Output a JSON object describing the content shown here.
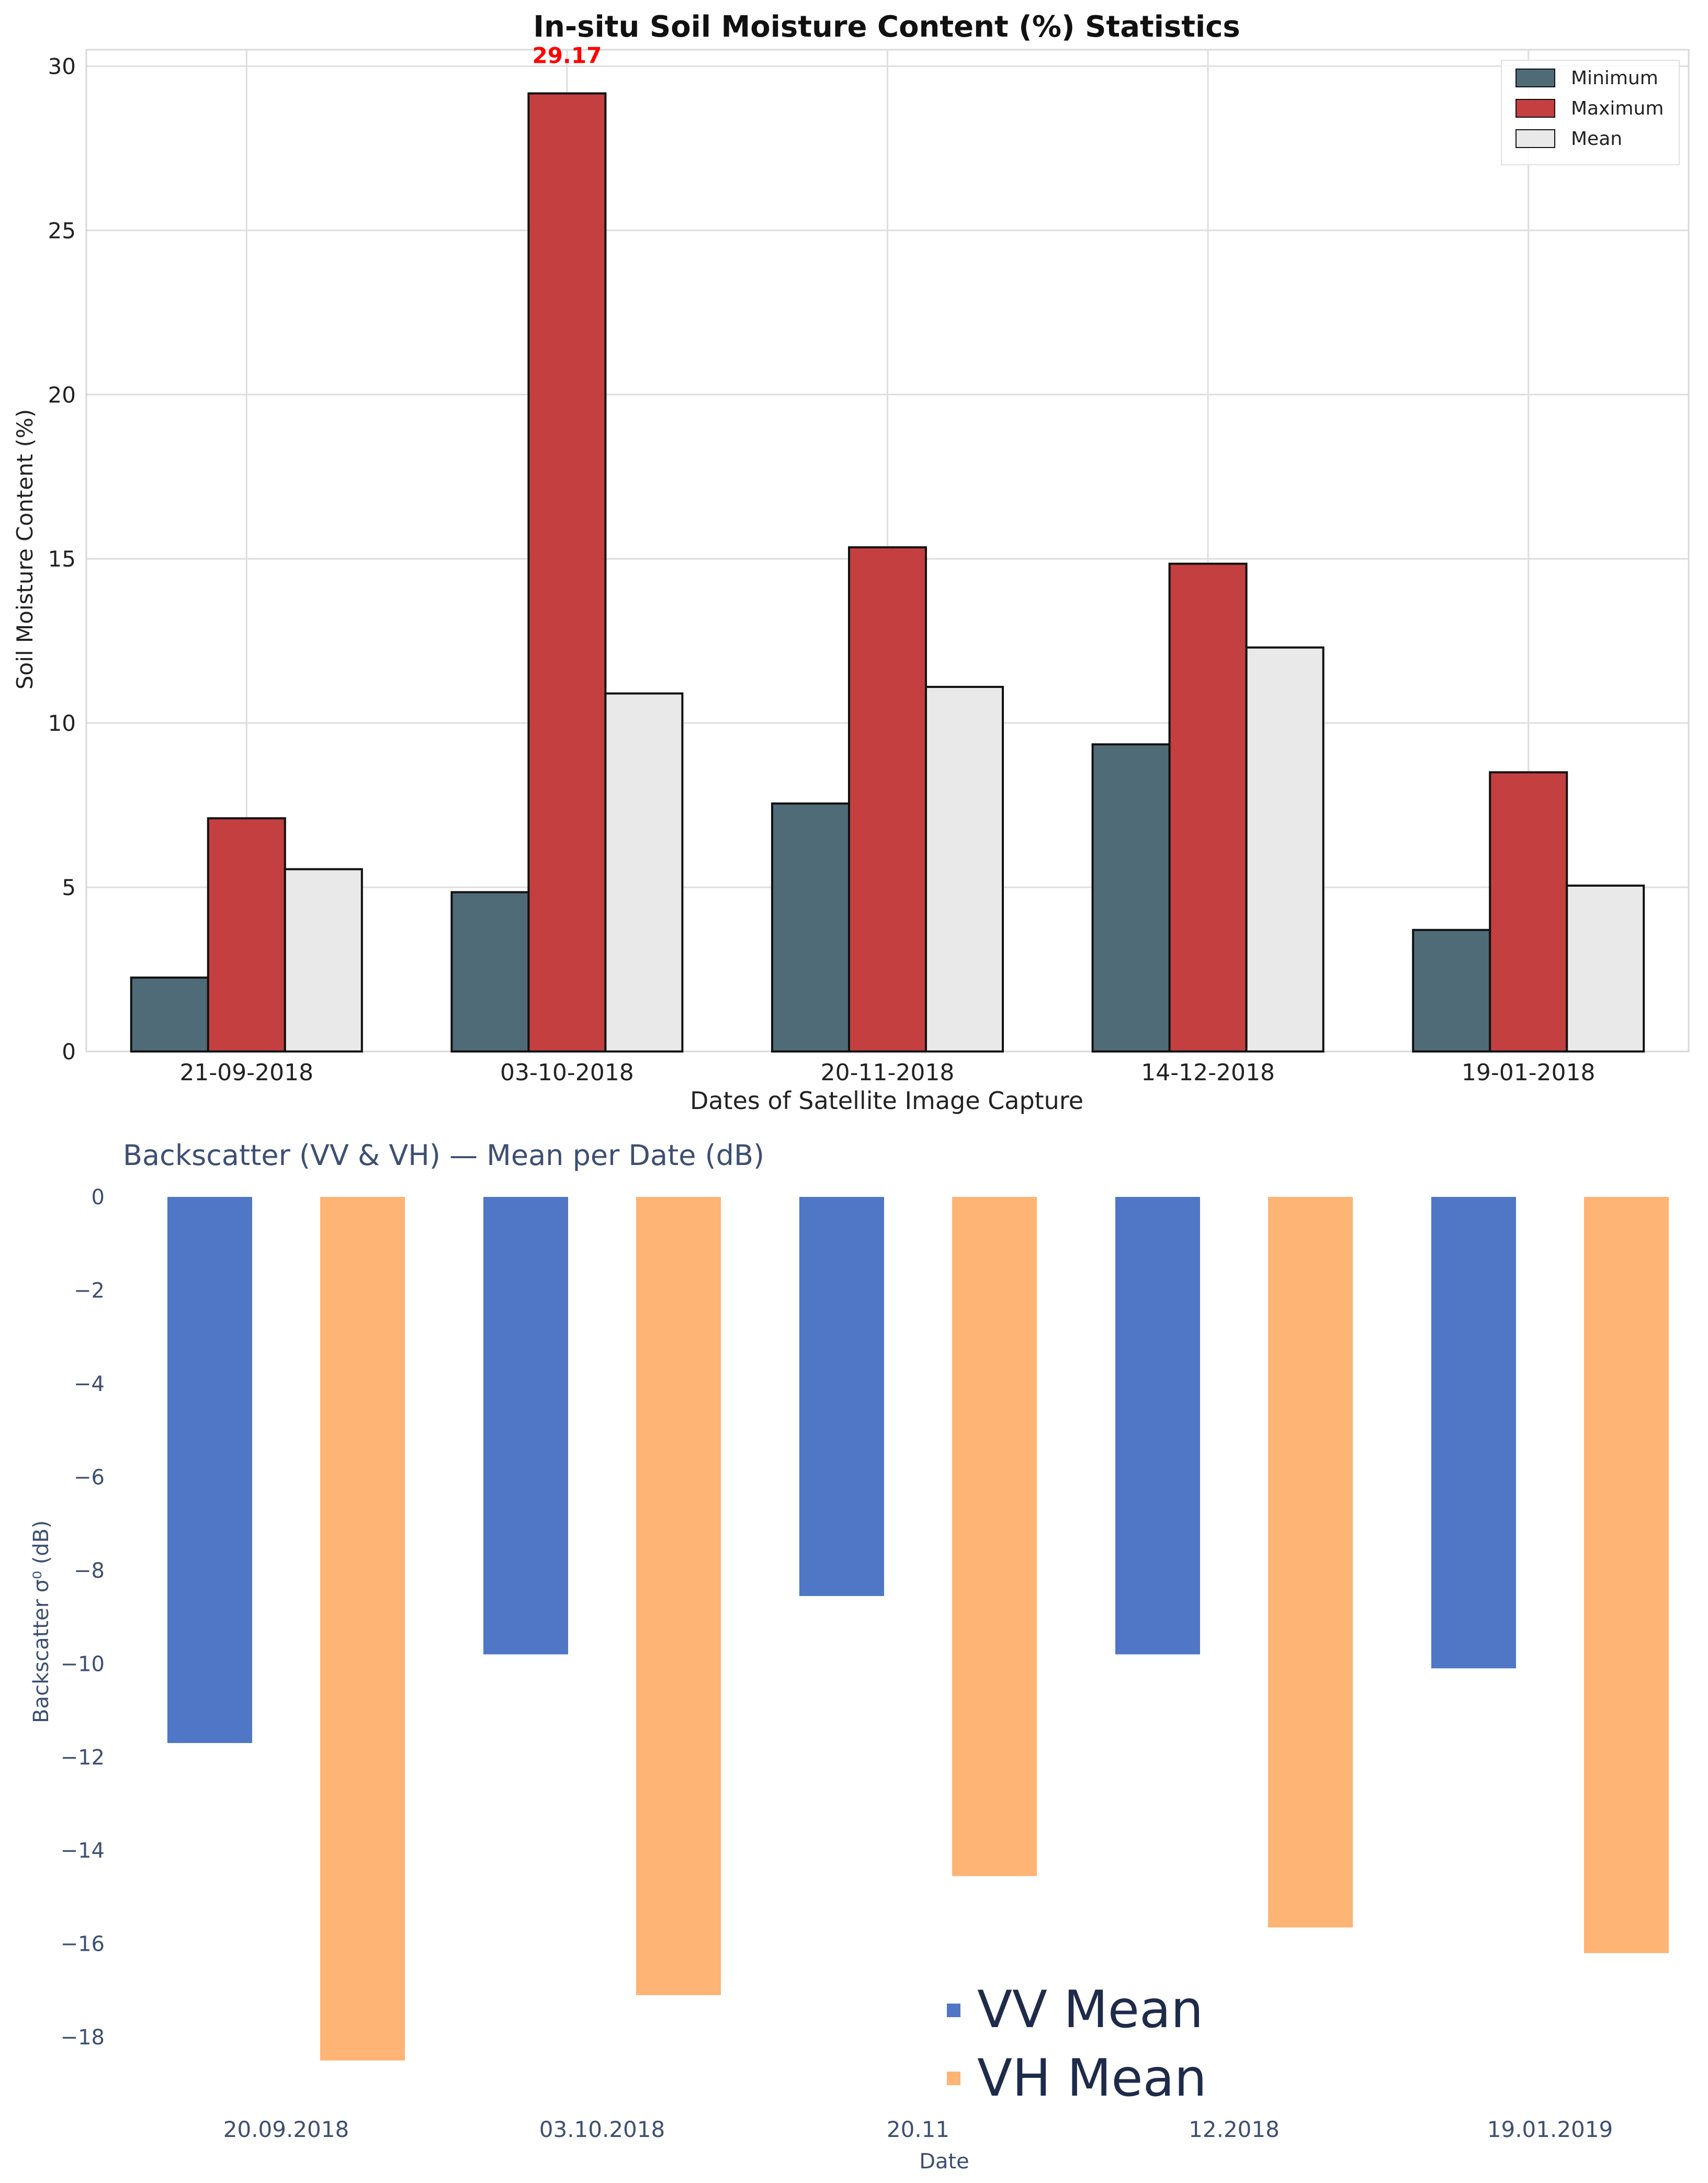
{
  "chart_data": [
    {
      "type": "bar",
      "title": "In-situ Soil Moisture Content (%) Statistics",
      "xlabel": "Dates of Satellite Image Capture",
      "ylabel": "Soil Moisture Content (%)",
      "categories": [
        "21-09-2018",
        "03-10-2018",
        "20-11-2018",
        "14-12-2018",
        "19-01-2018"
      ],
      "ylim": [
        0,
        30.5
      ],
      "yticks": [
        0,
        5,
        10,
        15,
        20,
        25,
        30
      ],
      "grid": true,
      "legend_position": "top-right",
      "series": [
        {
          "name": "Minimum",
          "color": "#4f6b78",
          "values": [
            2.25,
            4.85,
            7.55,
            9.35,
            3.7
          ]
        },
        {
          "name": "Maximum",
          "color": "#c43f3f",
          "values": [
            7.1,
            29.17,
            15.35,
            14.85,
            8.5
          ]
        },
        {
          "name": "Mean",
          "color": "#e9e9e9",
          "values": [
            5.55,
            10.9,
            11.1,
            12.3,
            5.05
          ]
        }
      ],
      "annotations": [
        {
          "text": "29.17",
          "category": "03-10-2018",
          "series": "Maximum",
          "color": "#ff0000"
        }
      ]
    },
    {
      "type": "bar",
      "title": "Backscatter (VV & VH) — Mean per Date (dB)",
      "xlabel": "Date",
      "ylabel": "Backscatter σ⁰ (dB)",
      "categories": [
        "20.09.2018",
        "03.10.2018",
        "20.11",
        "12.2018",
        "19.01.2019"
      ],
      "ylim": [
        -19.5,
        0
      ],
      "yticks": [
        0,
        -2,
        -4,
        -6,
        -8,
        -10,
        -12,
        -14,
        -16,
        -18
      ],
      "grid": false,
      "legend_position": "bottom-center",
      "series": [
        {
          "name": "VV Mean",
          "color": "#4f77c6",
          "values": [
            -11.7,
            -9.8,
            -8.55,
            -9.8,
            -10.1
          ]
        },
        {
          "name": "VH Mean",
          "color": "#fdb474",
          "values": [
            -18.5,
            -17.1,
            -14.55,
            -15.65,
            -16.2
          ]
        }
      ]
    }
  ]
}
